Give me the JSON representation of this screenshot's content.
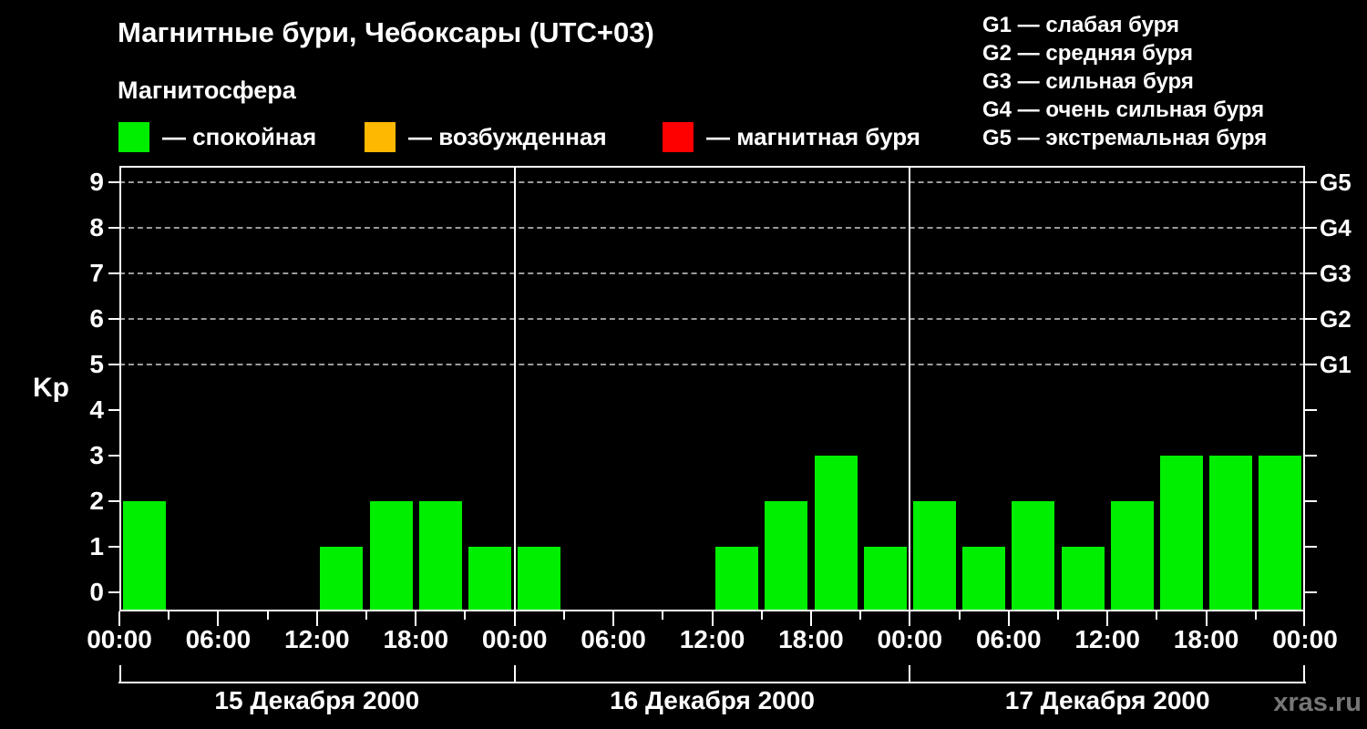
{
  "header": {
    "title": "Магнитные бури, Чебоксары (UTC+03)",
    "subtitle": "Магнитосфера",
    "legend": [
      {
        "name": "quiet",
        "label": "— спокойная",
        "color": "#00ee00"
      },
      {
        "name": "excited",
        "label": "— возбужденная",
        "color": "#ffb800"
      },
      {
        "name": "storm",
        "label": "— магнитная буря",
        "color": "#ff0000"
      }
    ],
    "g_legend": [
      "G1 — слабая буря",
      "G2 — средняя буря",
      "G3 — сильная буря",
      "G4 — очень сильная буря",
      "G5 — экстремальная буря"
    ]
  },
  "watermark": "xras.ru",
  "chart_data": {
    "type": "bar",
    "title": "Магнитные бури, Чебоксары (UTC+03)",
    "ylabel": "Kp",
    "ylim": [
      0,
      9.4
    ],
    "yticks": [
      0,
      1,
      2,
      3,
      4,
      5,
      6,
      7,
      8,
      9
    ],
    "gridlines_at_kp": [
      5,
      6,
      7,
      8,
      9
    ],
    "grid": "dashed horizontal at storm levels only",
    "legend_position": "top",
    "bar_color": "#00ee00",
    "interval_hours": 3,
    "time_ticks": [
      "00:00",
      "06:00",
      "12:00",
      "18:00"
    ],
    "closing_time_tick": "00:00",
    "right_axis": [
      {
        "label": "G1",
        "kp": 5
      },
      {
        "label": "G2",
        "kp": 6
      },
      {
        "label": "G3",
        "kp": 7
      },
      {
        "label": "G4",
        "kp": 8
      },
      {
        "label": "G5",
        "kp": 9
      }
    ],
    "days": [
      {
        "date": "15 Декабря 2000",
        "values": [
          2,
          0,
          0,
          0,
          1,
          2,
          2,
          1
        ]
      },
      {
        "date": "16 Декабря 2000",
        "values": [
          1,
          0,
          0,
          0,
          1,
          2,
          3,
          1
        ]
      },
      {
        "date": "17 Декабря 2000",
        "values": [
          2,
          1,
          2,
          1,
          2,
          3,
          3,
          3
        ]
      }
    ]
  }
}
